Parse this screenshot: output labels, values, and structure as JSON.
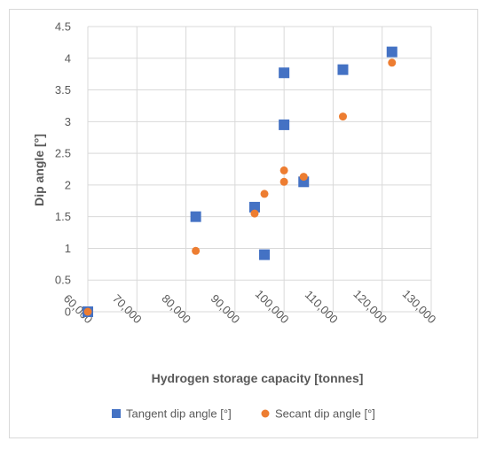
{
  "chart_data": {
    "type": "scatter",
    "title": "",
    "xlabel": "Hydrogen storage capacity [tonnes]",
    "ylabel": "Dip angle [°]",
    "xlim": [
      60000,
      130000
    ],
    "ylim": [
      0,
      4.5
    ],
    "x_ticks": [
      60000,
      70000,
      80000,
      90000,
      100000,
      110000,
      120000,
      130000
    ],
    "x_tick_labels": [
      "60,000",
      "70,000",
      "80,000",
      "90,000",
      "100,000",
      "110,000",
      "120,000",
      "130,000"
    ],
    "y_ticks": [
      0,
      0.5,
      1,
      1.5,
      2,
      2.5,
      3,
      3.5,
      4,
      4.5
    ],
    "y_tick_labels": [
      "0",
      "0.5",
      "1",
      "1.5",
      "2",
      "2.5",
      "3",
      "3.5",
      "4",
      "4.5"
    ],
    "grid": true,
    "legend_position": "bottom",
    "series": [
      {
        "name": "Tangent dip angle [°]",
        "marker": "square",
        "color": "#4472c4",
        "points": [
          {
            "x": 60000,
            "y": 0
          },
          {
            "x": 82000,
            "y": 1.5
          },
          {
            "x": 94000,
            "y": 1.65
          },
          {
            "x": 96000,
            "y": 0.9
          },
          {
            "x": 100000,
            "y": 2.95
          },
          {
            "x": 100000,
            "y": 3.77
          },
          {
            "x": 104000,
            "y": 2.05
          },
          {
            "x": 112000,
            "y": 3.82
          },
          {
            "x": 122000,
            "y": 4.1
          }
        ]
      },
      {
        "name": "Secant dip angle [°]",
        "marker": "circle",
        "color": "#ed7d31",
        "points": [
          {
            "x": 60000,
            "y": 0
          },
          {
            "x": 82000,
            "y": 0.96
          },
          {
            "x": 94000,
            "y": 1.55
          },
          {
            "x": 96000,
            "y": 1.86
          },
          {
            "x": 100000,
            "y": 2.05
          },
          {
            "x": 100000,
            "y": 2.23
          },
          {
            "x": 104000,
            "y": 2.13
          },
          {
            "x": 112000,
            "y": 3.08
          },
          {
            "x": 122000,
            "y": 3.93
          }
        ]
      }
    ]
  }
}
